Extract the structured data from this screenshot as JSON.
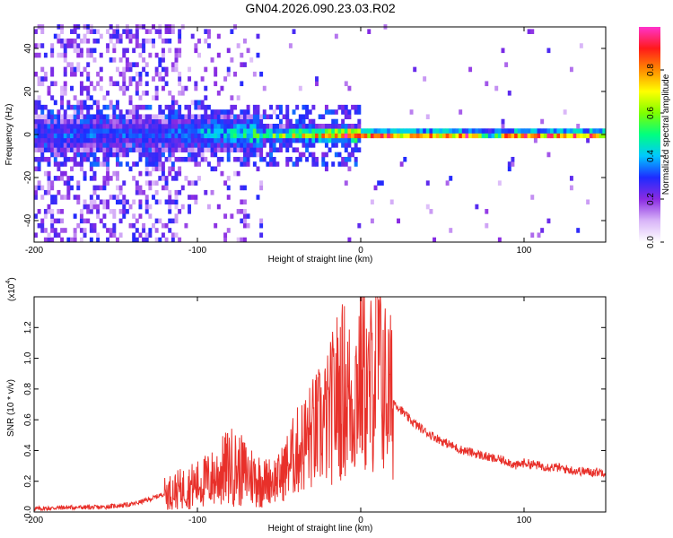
{
  "title": "GN04.2026.090.23.03.R02",
  "colors": {
    "snr_line": "#e8302a",
    "frame": "#000000"
  },
  "chart_data": [
    {
      "type": "heatmap",
      "name": "spectrogram",
      "xlabel": "Height of straight line (km)",
      "ylabel": "Frequency (Hz)",
      "xlim": [
        -200,
        150
      ],
      "ylim": [
        -50,
        50
      ],
      "xticks": [
        -200,
        -100,
        0,
        100
      ],
      "yticks": [
        -40,
        -20,
        0,
        20,
        40
      ],
      "xtick_labels": [
        "-200",
        "-100",
        "0",
        "100"
      ],
      "ytick_labels": [
        "-40",
        "-20",
        "0",
        "20",
        "40"
      ],
      "colorbar": {
        "label": "Normalized spectral amplitude",
        "range": [
          0,
          1
        ],
        "ticks": [
          0.0,
          0.2,
          0.4,
          0.6,
          0.8
        ],
        "tick_labels": [
          "0.0",
          "0.2",
          "0.4",
          "0.6",
          "0.8"
        ],
        "colormap": [
          "#ffffff",
          "#d8b4f8",
          "#8a2be2",
          "#1e2bff",
          "#00c8ff",
          "#00ff7f",
          "#7fff00",
          "#ffff00",
          "#ff8c00",
          "#ff1a1a",
          "#ff33cc"
        ]
      },
      "ridge": [
        {
          "x": -120,
          "y": 0,
          "v": 0.32
        },
        {
          "x": -100,
          "y": 1,
          "v": 0.38
        },
        {
          "x": -80,
          "y": 0.5,
          "v": 0.45
        },
        {
          "x": -60,
          "y": 0,
          "v": 0.55
        },
        {
          "x": -40,
          "y": 0,
          "v": 0.7
        },
        {
          "x": -20,
          "y": 0,
          "v": 0.85
        },
        {
          "x": 0,
          "y": 0,
          "v": 0.95
        },
        {
          "x": 70,
          "y": 0,
          "v": 0.97
        },
        {
          "x": 80,
          "y": 0.5,
          "v": 0.55
        },
        {
          "x": 90,
          "y": 0,
          "v": 0.97
        },
        {
          "x": 150,
          "y": 0,
          "v": 0.97
        }
      ]
    },
    {
      "type": "line",
      "name": "snr",
      "xlabel": "Height of straight line (km)",
      "ylabel": "SNR (10 * v/v)",
      "multiplier_label": "(x10",
      "multiplier_exp": "4",
      "xlim": [
        -200,
        150
      ],
      "ylim": [
        0,
        1.4
      ],
      "xticks": [
        -200,
        -100,
        0,
        100
      ],
      "yticks": [
        0.0,
        0.2,
        0.4,
        0.6,
        0.8,
        1.0,
        1.2
      ],
      "xtick_labels": [
        "-200",
        "-100",
        "0",
        "100"
      ],
      "ytick_labels": [
        "0.0",
        "0.2",
        "0.4",
        "0.6",
        "0.8",
        "1.0",
        "1.2"
      ],
      "series": [
        {
          "name": "SNR",
          "x": [
            -200,
            -180,
            -160,
            -140,
            -130,
            -120,
            -110,
            -100,
            -90,
            -80,
            -70,
            -60,
            -50,
            -40,
            -30,
            -20,
            -15,
            -10,
            -5,
            0,
            5,
            10,
            15,
            20,
            30,
            40,
            50,
            60,
            70,
            80,
            90,
            95,
            100,
            110,
            120,
            130,
            140,
            150
          ],
          "values": [
            0.02,
            0.03,
            0.03,
            0.05,
            0.08,
            0.12,
            0.15,
            0.18,
            0.22,
            0.3,
            0.25,
            0.2,
            0.22,
            0.38,
            0.5,
            0.6,
            0.75,
            0.8,
            0.7,
            0.95,
            0.75,
            1.05,
            0.8,
            0.72,
            0.6,
            0.52,
            0.46,
            0.41,
            0.38,
            0.35,
            0.33,
            0.3,
            0.32,
            0.3,
            0.29,
            0.27,
            0.26,
            0.26
          ]
        }
      ]
    }
  ]
}
